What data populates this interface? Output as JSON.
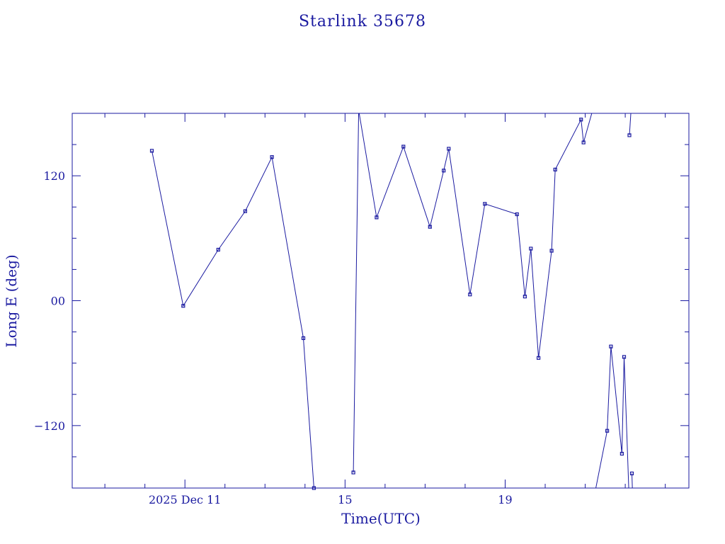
{
  "chart_data": {
    "type": "line",
    "title": "Starlink 35678",
    "xlabel": "Time(UTC)",
    "ylabel": "Long E (deg)",
    "xlim": [
      "2025-12-08T04:25",
      "2025-12-23T14:10"
    ],
    "ylim": [
      -180,
      180
    ],
    "x_major_ticks": [
      {
        "x": "2025-12-11T00:00",
        "label": "2025 Dec 11"
      },
      {
        "x": "2025-12-15T00:00",
        "label": "15"
      },
      {
        "x": "2025-12-19T00:00",
        "label": "19"
      }
    ],
    "x_minor_ticks": [
      "2025-12-09T00:00",
      "2025-12-10T00:00",
      "2025-12-12T00:00",
      "2025-12-13T00:00",
      "2025-12-14T00:00",
      "2025-12-16T00:00",
      "2025-12-17T00:00",
      "2025-12-18T00:00",
      "2025-12-20T00:00",
      "2025-12-21T00:00",
      "2025-12-22T00:00",
      "2025-12-23T00:00"
    ],
    "y_major_ticks": [
      {
        "y": 120,
        "label": "120"
      },
      {
        "y": 0,
        "label": "00"
      },
      {
        "y": -120,
        "label": "−120"
      }
    ],
    "y_minor_ticks": [
      -150,
      -90,
      -60,
      -30,
      30,
      60,
      90,
      150
    ],
    "grid": false,
    "points": [
      {
        "x": "2025-12-10T04:10",
        "y": 144
      },
      {
        "x": "2025-12-10T23:00",
        "y": -5
      },
      {
        "x": "2025-12-11T20:00",
        "y": 49
      },
      {
        "x": "2025-12-12T12:10",
        "y": 86
      },
      {
        "x": "2025-12-13T04:10",
        "y": 138
      },
      {
        "x": "2025-12-13T23:00",
        "y": -36
      },
      {
        "x": "2025-12-14T05:20",
        "y": -180
      },
      {
        "x": "2025-12-15T05:00",
        "y": -165
      },
      {
        "x": "2025-12-15T08:10",
        "y": 183
      },
      {
        "x": "2025-12-15T18:55",
        "y": 80
      },
      {
        "x": "2025-12-16T11:00",
        "y": 148
      },
      {
        "x": "2025-12-17T02:55",
        "y": 71
      },
      {
        "x": "2025-12-17T11:10",
        "y": 125
      },
      {
        "x": "2025-12-17T14:10",
        "y": 146
      },
      {
        "x": "2025-12-18T02:55",
        "y": 6
      },
      {
        "x": "2025-12-18T11:50",
        "y": 93
      },
      {
        "x": "2025-12-19T07:05",
        "y": 83
      },
      {
        "x": "2025-12-19T11:50",
        "y": 4
      },
      {
        "x": "2025-12-19T15:25",
        "y": 50
      },
      {
        "x": "2025-12-19T20:00",
        "y": -55
      },
      {
        "x": "2025-12-20T03:50",
        "y": 48
      },
      {
        "x": "2025-12-20T06:00",
        "y": 126
      },
      {
        "x": "2025-12-20T21:30",
        "y": 174
      },
      {
        "x": "2025-12-20T23:00",
        "y": 152
      },
      {
        "x": "2025-12-21T05:00",
        "y": 186
      },
      {
        "x": "2025-12-21T06:00",
        "y": -183
      },
      {
        "x": "2025-12-21T13:10",
        "y": -125
      },
      {
        "x": "2025-12-21T15:25",
        "y": -44
      },
      {
        "x": "2025-12-21T22:00",
        "y": -147
      },
      {
        "x": "2025-12-21T23:20",
        "y": -54
      },
      {
        "x": "2025-12-22T02:10",
        "y": -183
      },
      {
        "x": "2025-12-22T02:30",
        "y": 159
      },
      {
        "x": "2025-12-22T03:30",
        "y": 183
      },
      {
        "x": "2025-12-22T04:00",
        "y": -166
      },
      {
        "x": "2025-12-22T04:20",
        "y": -183
      }
    ],
    "segments": [
      [
        0,
        6
      ],
      [
        7,
        24
      ],
      [
        25,
        30
      ],
      [
        31,
        32
      ],
      [
        33,
        34
      ]
    ]
  }
}
